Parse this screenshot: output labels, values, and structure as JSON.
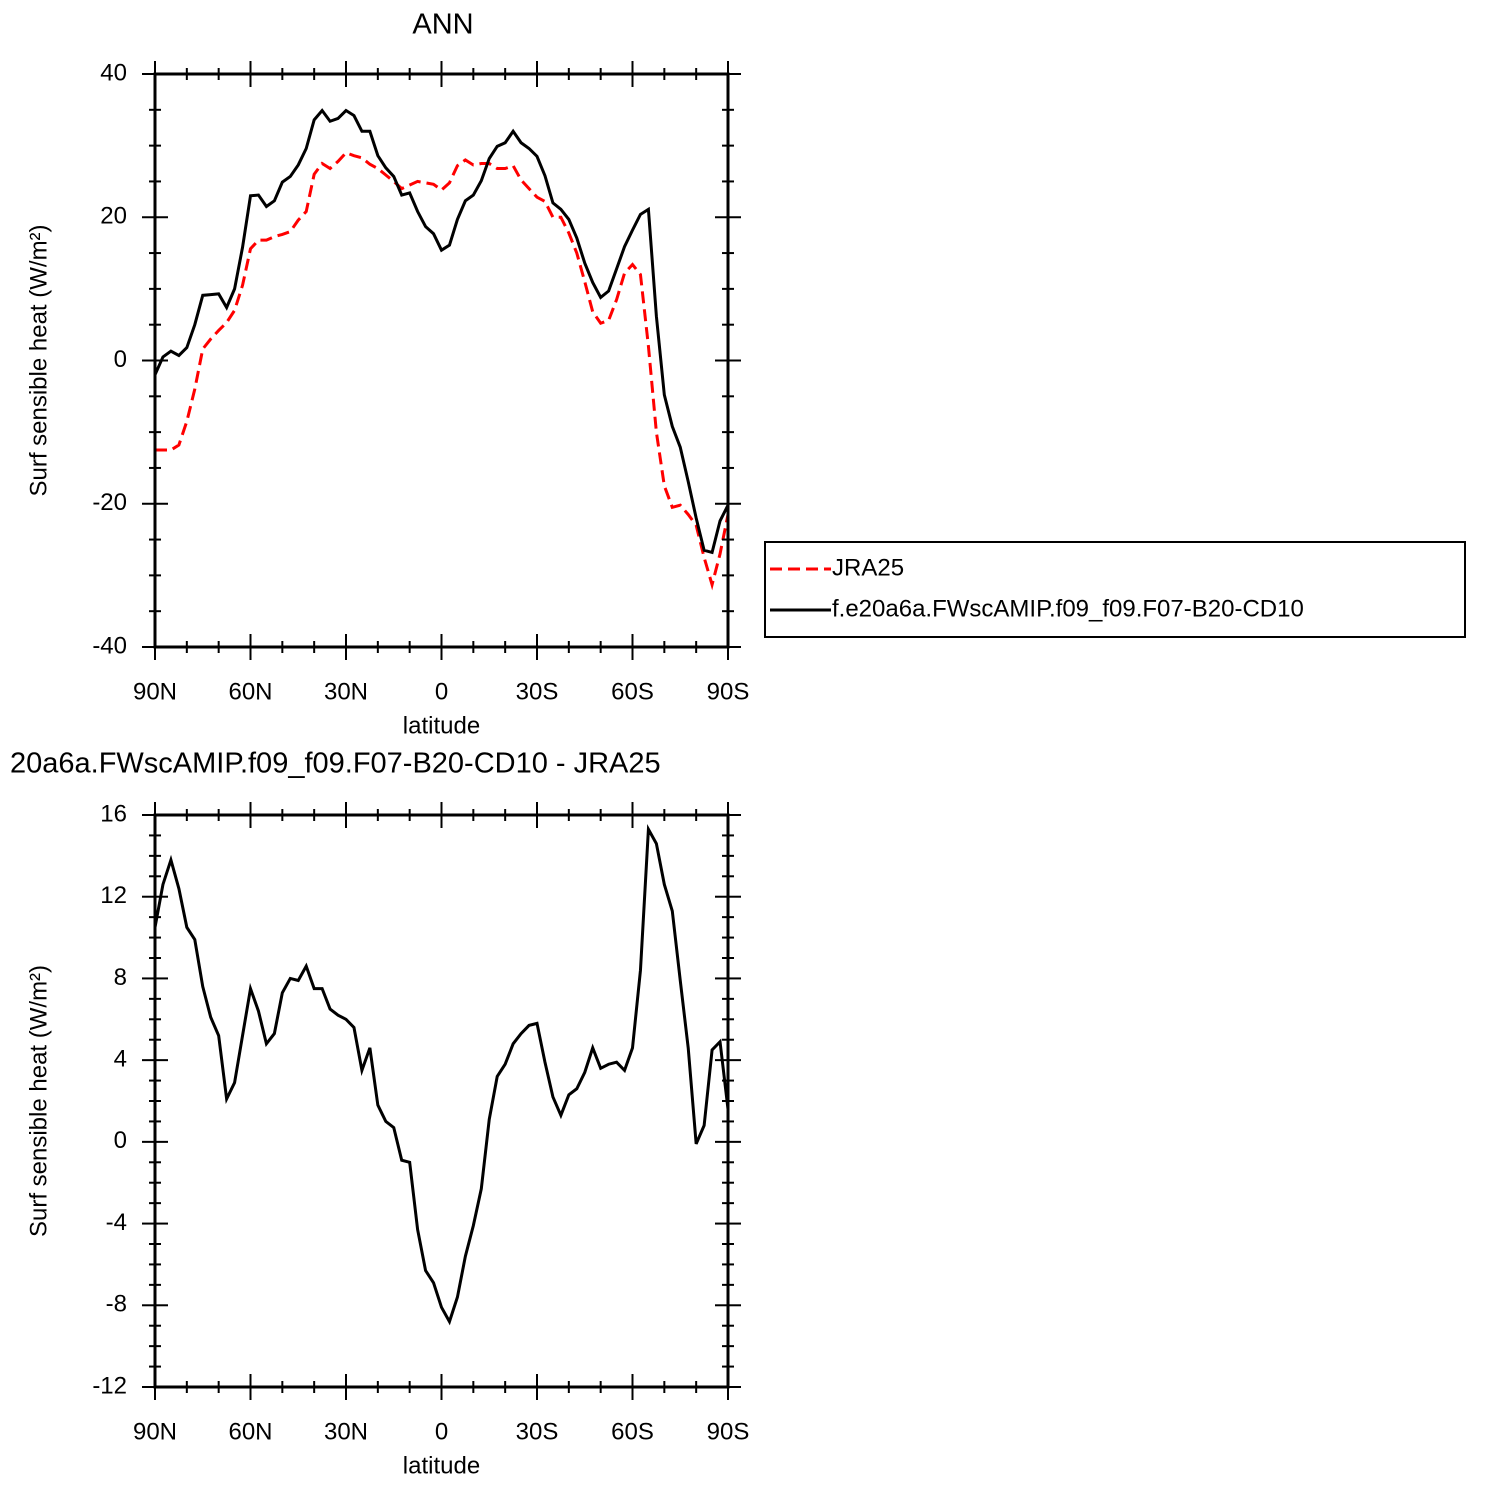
{
  "chart_data": [
    {
      "type": "line",
      "title": "ANN",
      "xlabel": "latitude",
      "ylabel": "Surf sensible heat (W/m²)",
      "x": [
        90,
        87.5,
        85,
        82.5,
        80,
        77.5,
        75,
        72.5,
        70,
        67.5,
        65,
        62.5,
        60,
        57.5,
        55,
        52.5,
        50,
        47.5,
        45,
        42.5,
        40,
        37.5,
        35,
        32.5,
        30,
        27.5,
        25,
        22.5,
        20,
        17.5,
        15,
        12.5,
        10,
        7.5,
        5,
        2.5,
        0,
        -2.5,
        -5,
        -7.5,
        -10,
        -12.5,
        -15,
        -17.5,
        -20,
        -22.5,
        -25,
        -27.5,
        -30,
        -32.5,
        -35,
        -37.5,
        -40,
        -42.5,
        -45,
        -47.5,
        -50,
        -52.5,
        -55,
        -57.5,
        -60,
        -62.5,
        -65,
        -67.5,
        -70,
        -72.5,
        -75,
        -77.5,
        -80,
        -82.5,
        -85,
        -87.5,
        -90
      ],
      "series": [
        {
          "name": "JRA25",
          "color": "#ff0000",
          "linestyle": "dashed",
          "values": [
            -12.5,
            -12.5,
            -12.5,
            -11.8,
            -8.5,
            -4,
            1.6,
            3,
            4.2,
            5.3,
            7,
            10.5,
            15.6,
            16.8,
            16.8,
            17.3,
            17.6,
            18,
            19.6,
            20.8,
            26,
            27.5,
            26.8,
            27.8,
            29,
            28.6,
            28.3,
            27.4,
            26.8,
            25.9,
            25,
            24,
            24.5,
            25,
            24.8,
            24.6,
            23.8,
            24.8,
            27.2,
            28,
            27.3,
            27.5,
            27.5,
            26.8,
            26.8,
            27.2,
            25.2,
            24,
            22.8,
            22.2,
            20,
            20,
            17.8,
            15,
            11,
            6.8,
            5.2,
            5.6,
            8.5,
            12.2,
            13.4,
            12,
            2,
            -10,
            -17.5,
            -20.5,
            -20.2,
            -21.5,
            -23,
            -27.5,
            -31.3,
            -27,
            -21.5
          ]
        },
        {
          "name": "f.e20a6a.FWscAMIP.f09_f09.F07-B20-CD10",
          "color": "#000000",
          "linestyle": "solid",
          "values": [
            -2,
            0.5,
            1.3,
            0.7,
            1.8,
            5,
            9.1,
            9.2,
            9.3,
            7.4,
            10,
            15.8,
            23,
            23.1,
            21.5,
            22.3,
            24.9,
            25.7,
            27.3,
            29.6,
            33.6,
            34.9,
            33.4,
            33.8,
            34.9,
            34.2,
            32,
            32,
            28.6,
            26.9,
            25.7,
            23.1,
            23.4,
            20.8,
            18.7,
            17.7,
            15.4,
            16.1,
            19.7,
            22.3,
            23.1,
            25.1,
            28.2,
            29.9,
            30.4,
            32,
            30.4,
            29.6,
            28.5,
            25.8,
            22,
            21.1,
            19.7,
            17.1,
            13.6,
            10.9,
            8.8,
            9.7,
            12.8,
            15.9,
            18.2,
            20.4,
            21.1,
            6.2,
            -4.8,
            -9.2,
            -12.1,
            -16.9,
            -22,
            -26.5,
            -26.8,
            -22.4,
            -20.2
          ]
        }
      ],
      "xlim": [
        90,
        -90
      ],
      "xticks": [
        {
          "value": 90,
          "label": "90N"
        },
        {
          "value": 60,
          "label": "60N"
        },
        {
          "value": 30,
          "label": "30N"
        },
        0,
        {
          "value": -30,
          "label": "30S"
        },
        {
          "value": -60,
          "label": "60S"
        },
        {
          "value": -90,
          "label": "90S"
        }
      ],
      "xminorticks": [
        80,
        70,
        50,
        40,
        20,
        10,
        -10,
        -20,
        -40,
        -50,
        -70,
        -80
      ],
      "ylim": [
        -40,
        40
      ],
      "yticks": [
        -40,
        -20,
        0,
        20,
        40
      ],
      "yminorticks": [
        -35,
        -30,
        -25,
        -15,
        -10,
        -5,
        5,
        10,
        15,
        25,
        30,
        35
      ],
      "legend": "outside-right"
    },
    {
      "type": "line",
      "title": "20a6a.FWscAMIP.f09_f09.F07-B20-CD10 - JRA25",
      "xlabel": "latitude",
      "ylabel": "Surf sensible heat (W/m²)",
      "x": [
        90,
        87.5,
        85,
        82.5,
        80,
        77.5,
        75,
        72.5,
        70,
        67.5,
        65,
        62.5,
        60,
        57.5,
        55,
        52.5,
        50,
        47.5,
        45,
        42.5,
        40,
        37.5,
        35,
        32.5,
        30,
        27.5,
        25,
        22.5,
        20,
        17.5,
        15,
        12.5,
        10,
        7.5,
        5,
        2.5,
        0,
        -2.5,
        -5,
        -7.5,
        -10,
        -12.5,
        -15,
        -17.5,
        -20,
        -22.5,
        -25,
        -27.5,
        -30,
        -32.5,
        -35,
        -37.5,
        -40,
        -42.5,
        -45,
        -47.5,
        -50,
        -52.5,
        -55,
        -57.5,
        -60,
        -62.5,
        -65,
        -67.5,
        -70,
        -72.5,
        -75,
        -77.5,
        -80,
        -82.5,
        -85,
        -87.5,
        -90
      ],
      "series": [
        {
          "color": "#000000",
          "linestyle": "solid",
          "values": [
            10.5,
            12.6,
            13.8,
            12.4,
            10.5,
            9.9,
            7.6,
            6.1,
            5.2,
            2.1,
            2.9,
            5.2,
            7.5,
            6.4,
            4.8,
            5.3,
            7.3,
            8,
            7.9,
            8.6,
            7.5,
            7.5,
            6.5,
            6.2,
            6,
            5.6,
            3.5,
            4.6,
            1.8,
            1,
            0.7,
            -0.9,
            -1,
            -4.3,
            -6.3,
            -6.9,
            -8.1,
            -8.8,
            -7.6,
            -5.6,
            -4.1,
            -2.3,
            1.1,
            3.2,
            3.8,
            4.8,
            5.3,
            5.7,
            5.8,
            3.9,
            2.2,
            1.3,
            2.3,
            2.6,
            3.4,
            4.6,
            3.6,
            3.8,
            3.9,
            3.5,
            4.6,
            8.4,
            15.3,
            14.6,
            12.6,
            11.3,
            7.9,
            4.6,
            -0.1,
            0.8,
            4.5,
            4.9,
            1.6
          ]
        }
      ],
      "xlim": [
        90,
        -90
      ],
      "xticks": [
        {
          "value": 90,
          "label": "90N"
        },
        {
          "value": 60,
          "label": "60N"
        },
        {
          "value": 30,
          "label": "30N"
        },
        0,
        {
          "value": -30,
          "label": "30S"
        },
        {
          "value": -60,
          "label": "60S"
        },
        {
          "value": -90,
          "label": "90S"
        }
      ],
      "xminorticks": [
        80,
        70,
        50,
        40,
        20,
        10,
        -10,
        -20,
        -40,
        -50,
        -70,
        -80
      ],
      "ylim": [
        -12,
        16
      ],
      "yticks": [
        -12,
        -8,
        -4,
        0,
        4,
        8,
        12,
        16
      ],
      "yminorticks": [
        -11,
        -10,
        -9,
        -7,
        -6,
        -5,
        -3,
        -2,
        -1,
        1,
        2,
        3,
        5,
        6,
        7,
        9,
        10,
        11,
        13,
        14,
        15
      ]
    }
  ]
}
